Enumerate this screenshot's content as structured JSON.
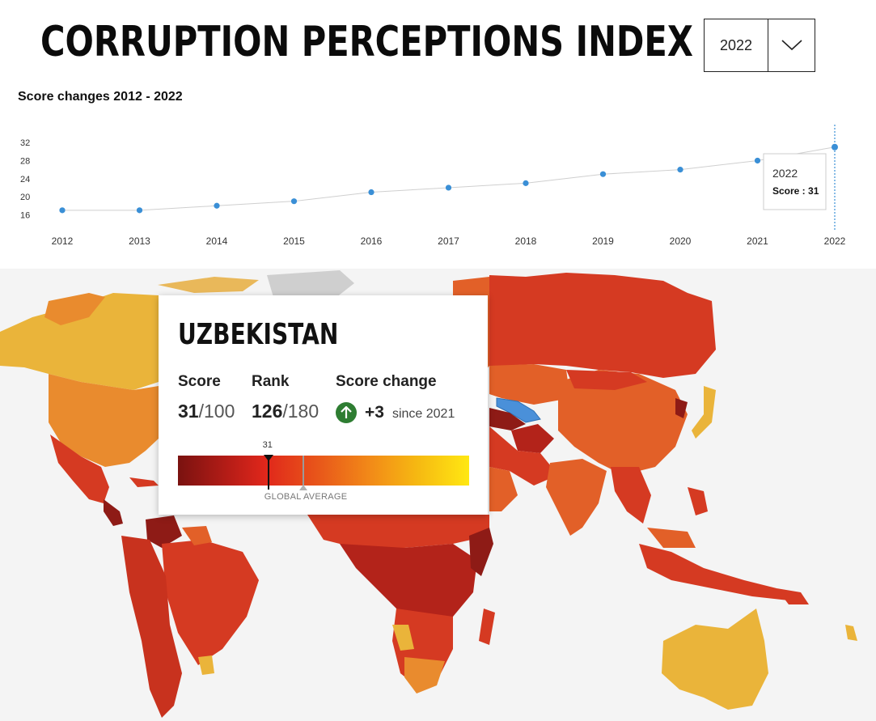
{
  "header": {
    "title": "CORRUPTION PERCEPTIONS INDEX",
    "year_select": {
      "value": "2022"
    }
  },
  "chart": {
    "heading": "Score changes 2012 - 2022",
    "tooltip": {
      "year": "2022",
      "score_text": "Score : 31"
    }
  },
  "chart_data": {
    "type": "line",
    "title": "Score changes 2012 - 2022",
    "xlabel": "",
    "ylabel": "",
    "x": [
      "2012",
      "2013",
      "2014",
      "2015",
      "2016",
      "2017",
      "2018",
      "2019",
      "2020",
      "2021",
      "2022"
    ],
    "values": [
      17,
      17,
      18,
      19,
      21,
      22,
      23,
      25,
      26,
      28,
      31
    ],
    "yticks": [
      16,
      20,
      24,
      28,
      32
    ],
    "ylim": [
      15,
      34
    ],
    "grid": false,
    "highlight_index": 10,
    "colors": {
      "point": "#3a8fd6",
      "line": "#cfcfcf",
      "cursor": "#3a8fd6"
    }
  },
  "card": {
    "country": "UZBEKISTAN",
    "score_label": "Score",
    "score_value": "31",
    "score_max": "/100",
    "rank_label": "Rank",
    "rank_value": "126",
    "rank_max": "/180",
    "change_label": "Score change",
    "change_icon": "arrow-up-icon",
    "change_value": "+3",
    "change_since": "since 2021",
    "marker_label": "31",
    "marker_fraction": 0.31,
    "global_average_fraction": 0.43,
    "global_average_label": "GLOBAL AVERAGE",
    "colors": {
      "up": "#2e7d32"
    }
  },
  "map": {
    "colors": {
      "highlight": "#4a90d9",
      "very_low": "#8e1b16",
      "low": "#d53a22",
      "mid": "#e26028",
      "mid_high": "#e98b2e",
      "high": "#eab43a",
      "no_data": "#cfcfcf",
      "sea": "#f4f4f4"
    }
  }
}
